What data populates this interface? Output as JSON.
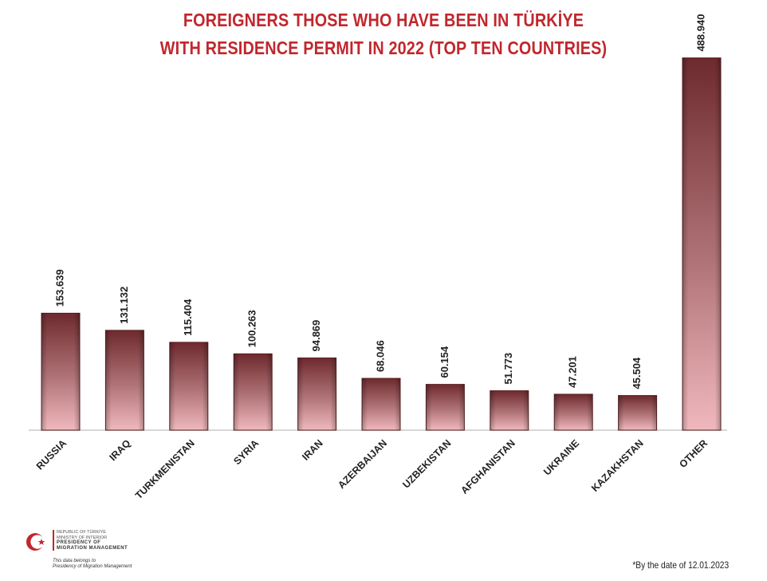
{
  "chart_data": {
    "type": "bar",
    "title_line1": "FOREIGNERS THOSE WHO HAVE BEEN IN TÜRKİYE",
    "title_line2": "WITH RESIDENCE PERMIT IN 2022 (TOP TEN COUNTRIES)",
    "categories": [
      "RUSSIA",
      "IRAQ",
      "TURKMENISTAN",
      "SYRIA",
      "IRAN",
      "AZERBAIJAN",
      "UZBEKISTAN",
      "AFGHANISTAN",
      "UKRAINE",
      "KAZAKHSTAN",
      "OTHER"
    ],
    "values": [
      153639,
      131132,
      115404,
      100263,
      94869,
      68046,
      60154,
      51773,
      47201,
      45504,
      488940
    ],
    "value_labels": [
      "153.639",
      "131.132",
      "115.404",
      "100.263",
      "94.869",
      "68.046",
      "60.154",
      "51.773",
      "47.201",
      "45.504",
      "488.940"
    ],
    "xlabel": "",
    "ylabel": "",
    "ylim": [
      0,
      500000
    ],
    "grid": false,
    "legend": "none"
  },
  "colors": {
    "title": "#c1272d",
    "bar_top": "#6e2a2e",
    "bar_bottom": "#f0b8bd",
    "baseline": "#d8d8d8"
  },
  "logo": {
    "line1": "REPUBLIC OF TÜRKİYE",
    "line2": "MINISTRY OF INTERIOR",
    "line3": "PRESIDENCY OF",
    "line4": "MIGRATION MANAGEMENT",
    "note1": "This data belongs to",
    "note2": "Presidency of Migration Management",
    "icon": "crescent-star-icon"
  },
  "footnote": "*By the date of 12.01.2023"
}
